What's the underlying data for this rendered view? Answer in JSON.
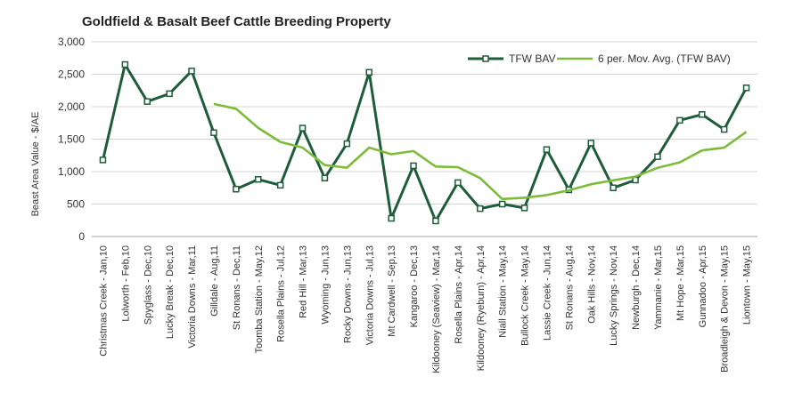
{
  "chart_data": {
    "type": "line",
    "title": "Goldfield & Basalt Beef Cattle Breeding Property",
    "xlabel": "",
    "ylabel": "Beast Area Value - $/AE",
    "ylim": [
      0,
      3000
    ],
    "yticks": [
      0,
      500,
      1000,
      1500,
      2000,
      2500,
      3000
    ],
    "ytick_labels": [
      "0",
      "500",
      "1,000",
      "1,500",
      "2,000",
      "2,500",
      "3,000"
    ],
    "grid": true,
    "legend_position": "top-right",
    "categories": [
      "Christmas Creek - Jan,10",
      "Lolworth - Feb,10",
      "Spyglass - Dec,10",
      "Lucky Break - Dec,10",
      "Victoria Downs - Mar,11",
      "Gilldale - Aug,11",
      "St Ronans - Dec,11",
      "Toomba Station - May,12",
      "Rosella Plains - Jul,12",
      "Red Hill - Mar,13",
      "Wyoming - Jun,13",
      "Rocky Downs - Jun,13",
      "Victoria Downs - Jul,13",
      "Mt Cardwell - Sep,13",
      "Kangaroo - Dec,13",
      "Kildooney (Seaview) - Mar,14",
      "Rosella Plains - Apr,14",
      "Kildooney (Ryeburn) - Apr,14",
      "Niall Station - May,14",
      "Bullock Creek - May,14",
      "Lassie Creek - Jun,14",
      "St Ronans - Aug,14",
      "Oak Hills - Nov,14",
      "Lucky Springs - Nov,14",
      "Newburgh - Dec,14",
      "Yammanie - Mar,15",
      "Mt Hope - Mar,15",
      "Gunnadoo - Apr,15",
      "Broadleigh & Devon - May,15",
      "Liontown - May,15"
    ],
    "series": [
      {
        "name": "TFW BAV",
        "color": "#1e5c3a",
        "marker": "square-open",
        "values": [
          1180,
          2650,
          2080,
          2200,
          2550,
          1600,
          730,
          880,
          790,
          1670,
          900,
          1430,
          2530,
          280,
          1090,
          240,
          830,
          430,
          500,
          440,
          1340,
          720,
          1440,
          750,
          870,
          1230,
          1790,
          1880,
          1650,
          2290
        ]
      },
      {
        "name": "6 per. Mov. Avg. (TFW BAV)",
        "color": "#7dbb3a",
        "marker": "none",
        "values": [
          null,
          null,
          null,
          null,
          null,
          2043,
          1968,
          1673,
          1458,
          1370,
          1100,
          1060,
          1370,
          1267,
          1317,
          1078,
          1068,
          900,
          578,
          597,
          639,
          712,
          806,
          866,
          923,
          1058,
          1143,
          1326,
          1368,
          1613
        ]
      }
    ]
  }
}
